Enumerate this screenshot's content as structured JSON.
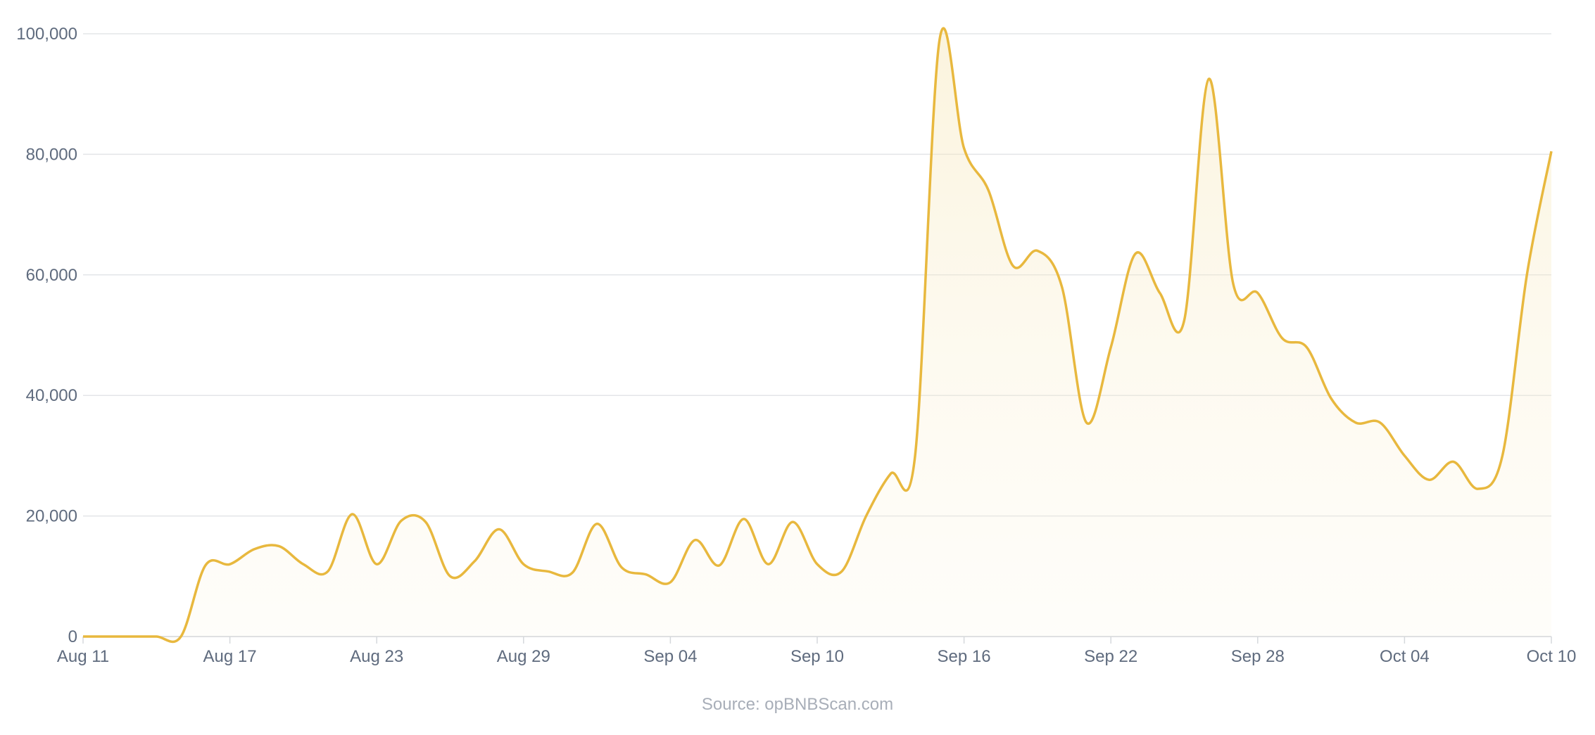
{
  "chart_data": {
    "type": "line",
    "source": "Source: opBNBScan.com",
    "categories": [
      "Aug 11",
      null,
      null,
      null,
      null,
      null,
      "Aug 17",
      null,
      null,
      null,
      null,
      null,
      "Aug 23",
      null,
      null,
      null,
      null,
      null,
      "Aug 29",
      null,
      null,
      null,
      null,
      null,
      "Sep 04",
      null,
      null,
      null,
      null,
      null,
      "Sep 10",
      null,
      null,
      null,
      null,
      null,
      "Sep 16",
      null,
      null,
      null,
      null,
      null,
      "Sep 22",
      null,
      null,
      null,
      null,
      null,
      "Sep 28",
      null,
      null,
      null,
      null,
      null,
      "Oct 04",
      null,
      null,
      null,
      null,
      null,
      "Oct 10"
    ],
    "series": [
      {
        "color": "#e8b83e",
        "values": [
          0,
          0,
          0,
          0,
          0,
          11800,
          12000,
          14500,
          15000,
          12000,
          10800,
          20300,
          12000,
          19200,
          19000,
          10000,
          12500,
          17800,
          12000,
          10800,
          10600,
          18700,
          11500,
          10300,
          9000,
          16000,
          11800,
          19500,
          12000,
          19000,
          12000,
          10800,
          20000,
          27000,
          30000,
          99000,
          81000,
          74000,
          61500,
          64000,
          58000,
          35500,
          48000,
          63500,
          57000,
          52500,
          92500,
          58500,
          57000,
          49500,
          48000,
          39500,
          35500,
          35500,
          30000,
          26000,
          29000,
          24500,
          30000,
          60000,
          80500
        ]
      }
    ],
    "ylim": [
      0,
      100000
    ],
    "yticks": [
      0,
      {
        "value": 20000,
        "label": "20,000"
      },
      {
        "value": 40000,
        "label": "40,000"
      },
      {
        "value": 60000,
        "label": "60,000"
      },
      {
        "value": 80000,
        "label": "80,000"
      },
      {
        "value": 100000,
        "label": "100,000"
      }
    ],
    "grid": true
  }
}
